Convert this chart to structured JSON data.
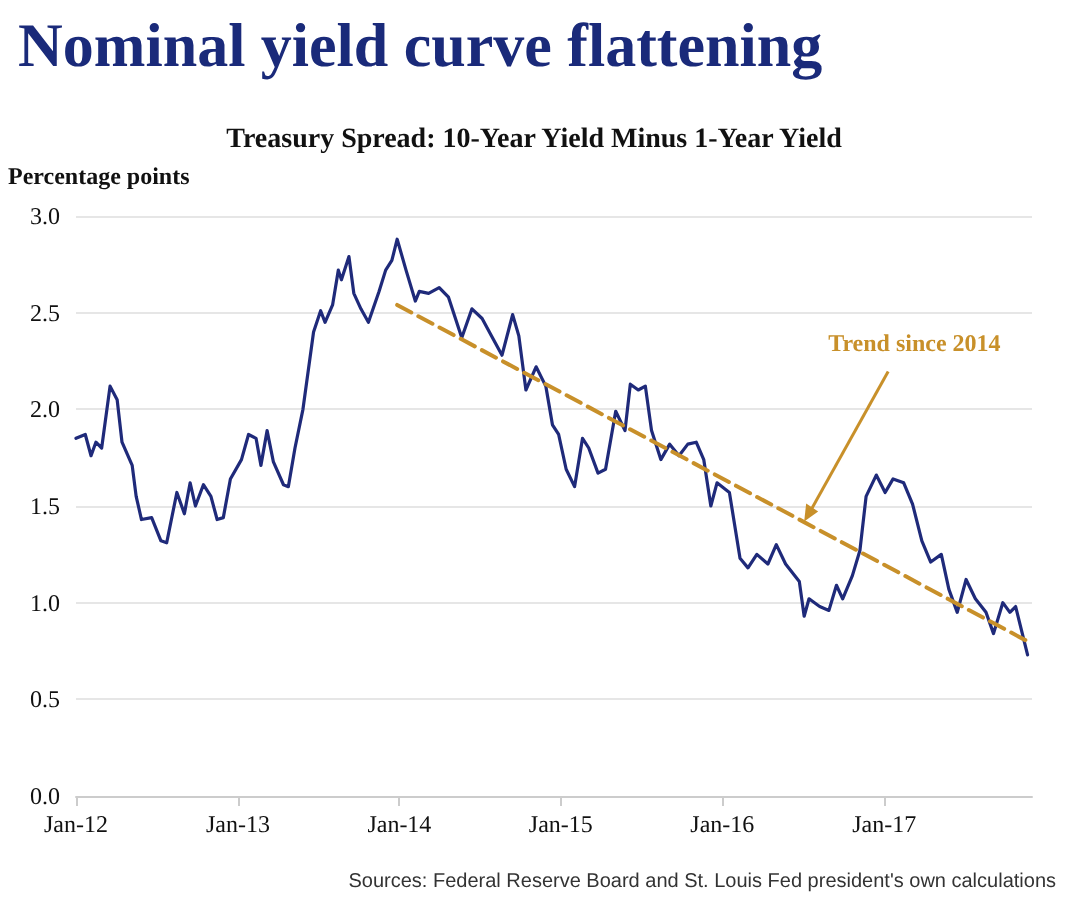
{
  "chart_data": {
    "type": "line",
    "title": "Nominal yield curve flattening",
    "subtitle": "Treasury Spread: 10-Year Yield Minus 1-Year Yield",
    "ylabel": "Percentage points",
    "xlim": [
      "2012-01-01",
      "2017-12-01"
    ],
    "xticks": [
      {
        "value": "2012-01-01",
        "label": "Jan-12"
      },
      {
        "value": "2013-01-01",
        "label": "Jan-13"
      },
      {
        "value": "2014-01-01",
        "label": "Jan-14"
      },
      {
        "value": "2015-01-01",
        "label": "Jan-15"
      },
      {
        "value": "2016-01-01",
        "label": "Jan-16"
      },
      {
        "value": "2017-01-01",
        "label": "Jan-17"
      }
    ],
    "ylim": [
      0,
      3
    ],
    "yticks": [
      {
        "value": 0,
        "label": "0.0"
      },
      {
        "value": 0.5,
        "label": "0.5"
      },
      {
        "value": 1,
        "label": "1.0"
      },
      {
        "value": 1.5,
        "label": "1.5"
      },
      {
        "value": 2,
        "label": "2.0"
      },
      {
        "value": 2.5,
        "label": "2.5"
      },
      {
        "value": 3,
        "label": "3.0"
      }
    ],
    "grid": "y",
    "marker": "none",
    "series": [
      {
        "color": "#1f2a7a",
        "line_style": "solid",
        "x": [
          "2012-01-01",
          "2012-01-22",
          "2012-02-04",
          "2012-02-15",
          "2012-02-28",
          "2012-03-18",
          "2012-04-03",
          "2012-04-14",
          "2012-05-07",
          "2012-05-16",
          "2012-05-28",
          "2012-06-20",
          "2012-07-11",
          "2012-07-24",
          "2012-08-16",
          "2012-09-02",
          "2012-09-15",
          "2012-09-27",
          "2012-10-15",
          "2012-11-01",
          "2012-11-15",
          "2012-11-29",
          "2012-12-15",
          "2013-01-09",
          "2013-01-25",
          "2013-02-11",
          "2013-02-22",
          "2013-03-08",
          "2013-03-22",
          "2013-04-14",
          "2013-04-25",
          "2013-05-10",
          "2013-05-28",
          "2013-06-21",
          "2013-07-07",
          "2013-07-17",
          "2013-08-03",
          "2013-08-16",
          "2013-08-23",
          "2013-09-09",
          "2013-09-20",
          "2013-10-06",
          "2013-10-23",
          "2013-11-16",
          "2013-12-01",
          "2013-12-15",
          "2013-12-27",
          "2014-01-16",
          "2014-02-06",
          "2014-02-15",
          "2014-03-08",
          "2014-04-01",
          "2014-04-22",
          "2014-05-22",
          "2014-06-14",
          "2014-07-07",
          "2014-07-28",
          "2014-08-21",
          "2014-09-14",
          "2014-09-28",
          "2014-10-14",
          "2014-11-06",
          "2014-11-28",
          "2014-12-13",
          "2014-12-27",
          "2015-01-13",
          "2015-02-01",
          "2015-02-19",
          "2015-03-05",
          "2015-03-26",
          "2015-04-12",
          "2015-05-05",
          "2015-05-26",
          "2015-06-07",
          "2015-06-25",
          "2015-07-11",
          "2015-07-25",
          "2015-08-15",
          "2015-09-04",
          "2015-09-25",
          "2015-10-15",
          "2015-11-03",
          "2015-11-20",
          "2015-12-06",
          "2015-12-20",
          "2016-01-17",
          "2016-02-10",
          "2016-02-28",
          "2016-03-19",
          "2016-04-13",
          "2016-05-02",
          "2016-05-23",
          "2016-06-23",
          "2016-07-04",
          "2016-07-15",
          "2016-08-08",
          "2016-08-29",
          "2016-09-15",
          "2016-09-29",
          "2016-10-21",
          "2016-11-07",
          "2016-11-21",
          "2016-12-14",
          "2017-01-03",
          "2017-01-21",
          "2017-02-14",
          "2017-03-06",
          "2017-03-27",
          "2017-04-16",
          "2017-05-10",
          "2017-05-27",
          "2017-06-15",
          "2017-07-05",
          "2017-07-26",
          "2017-08-19",
          "2017-09-05",
          "2017-09-26",
          "2017-10-12",
          "2017-10-25",
          "2017-11-21"
        ],
        "values": [
          1.85,
          1.87,
          1.76,
          1.83,
          1.8,
          2.12,
          2.05,
          1.83,
          1.71,
          1.55,
          1.43,
          1.44,
          1.32,
          1.31,
          1.57,
          1.46,
          1.62,
          1.5,
          1.61,
          1.55,
          1.43,
          1.44,
          1.64,
          1.74,
          1.87,
          1.85,
          1.71,
          1.89,
          1.73,
          1.61,
          1.6,
          1.8,
          2.0,
          2.4,
          2.51,
          2.45,
          2.54,
          2.72,
          2.67,
          2.79,
          2.6,
          2.52,
          2.45,
          2.61,
          2.72,
          2.77,
          2.88,
          2.72,
          2.56,
          2.61,
          2.6,
          2.63,
          2.58,
          2.37,
          2.52,
          2.47,
          2.38,
          2.28,
          2.49,
          2.38,
          2.1,
          2.22,
          2.12,
          1.92,
          1.87,
          1.69,
          1.6,
          1.85,
          1.8,
          1.67,
          1.69,
          1.99,
          1.89,
          2.13,
          2.1,
          2.12,
          1.89,
          1.74,
          1.82,
          1.76,
          1.82,
          1.83,
          1.74,
          1.5,
          1.62,
          1.57,
          1.23,
          1.18,
          1.25,
          1.2,
          1.3,
          1.2,
          1.11,
          0.93,
          1.02,
          0.98,
          0.96,
          1.09,
          1.02,
          1.14,
          1.27,
          1.55,
          1.66,
          1.57,
          1.64,
          1.62,
          1.51,
          1.32,
          1.21,
          1.25,
          1.07,
          0.95,
          1.12,
          1.02,
          0.95,
          0.84,
          1.0,
          0.95,
          0.98,
          0.73
        ]
      },
      {
        "type": "line",
        "color": "#c8902a",
        "line_style": "dashed",
        "x": [
          "2013-12-27",
          "2017-11-21"
        ],
        "values": [
          2.54,
          0.8
        ]
      }
    ],
    "annotations": [
      {
        "text": "Trend since 2014",
        "x": "2016-07-04",
        "y": 1.42
      },
      "Sources: Federal Reserve Board and St. Louis Fed president's own calculations"
    ]
  }
}
